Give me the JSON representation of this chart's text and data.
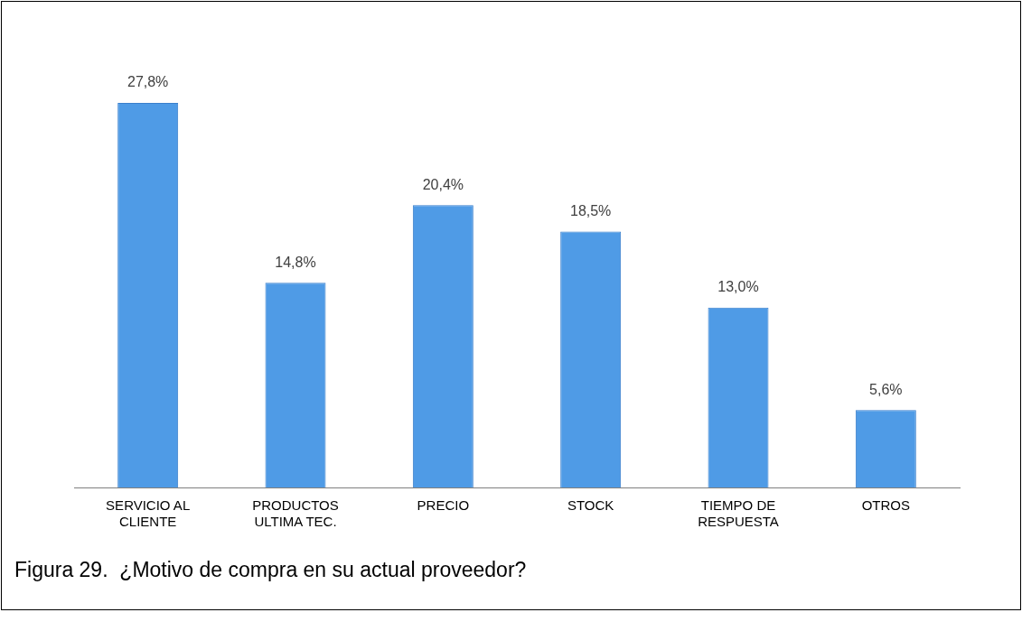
{
  "chart_data": {
    "type": "bar",
    "categories": [
      "SERVICIO AL CLIENTE",
      "PRODUCTOS ULTIMA TEC.",
      "PRECIO",
      "STOCK",
      "TIEMPO DE RESPUESTA",
      "OTROS"
    ],
    "values": [
      27.8,
      14.8,
      20.4,
      18.5,
      13.0,
      5.6
    ],
    "value_labels": [
      "27,8%",
      "14,8%",
      "20,4%",
      "18,5%",
      "13,0%",
      "5,6%"
    ],
    "color": "#4f9be6",
    "grid": false,
    "legend": false,
    "annotations": [
      "Figura 29.  ¿Motivo de compra en su actual proveedor?"
    ]
  }
}
